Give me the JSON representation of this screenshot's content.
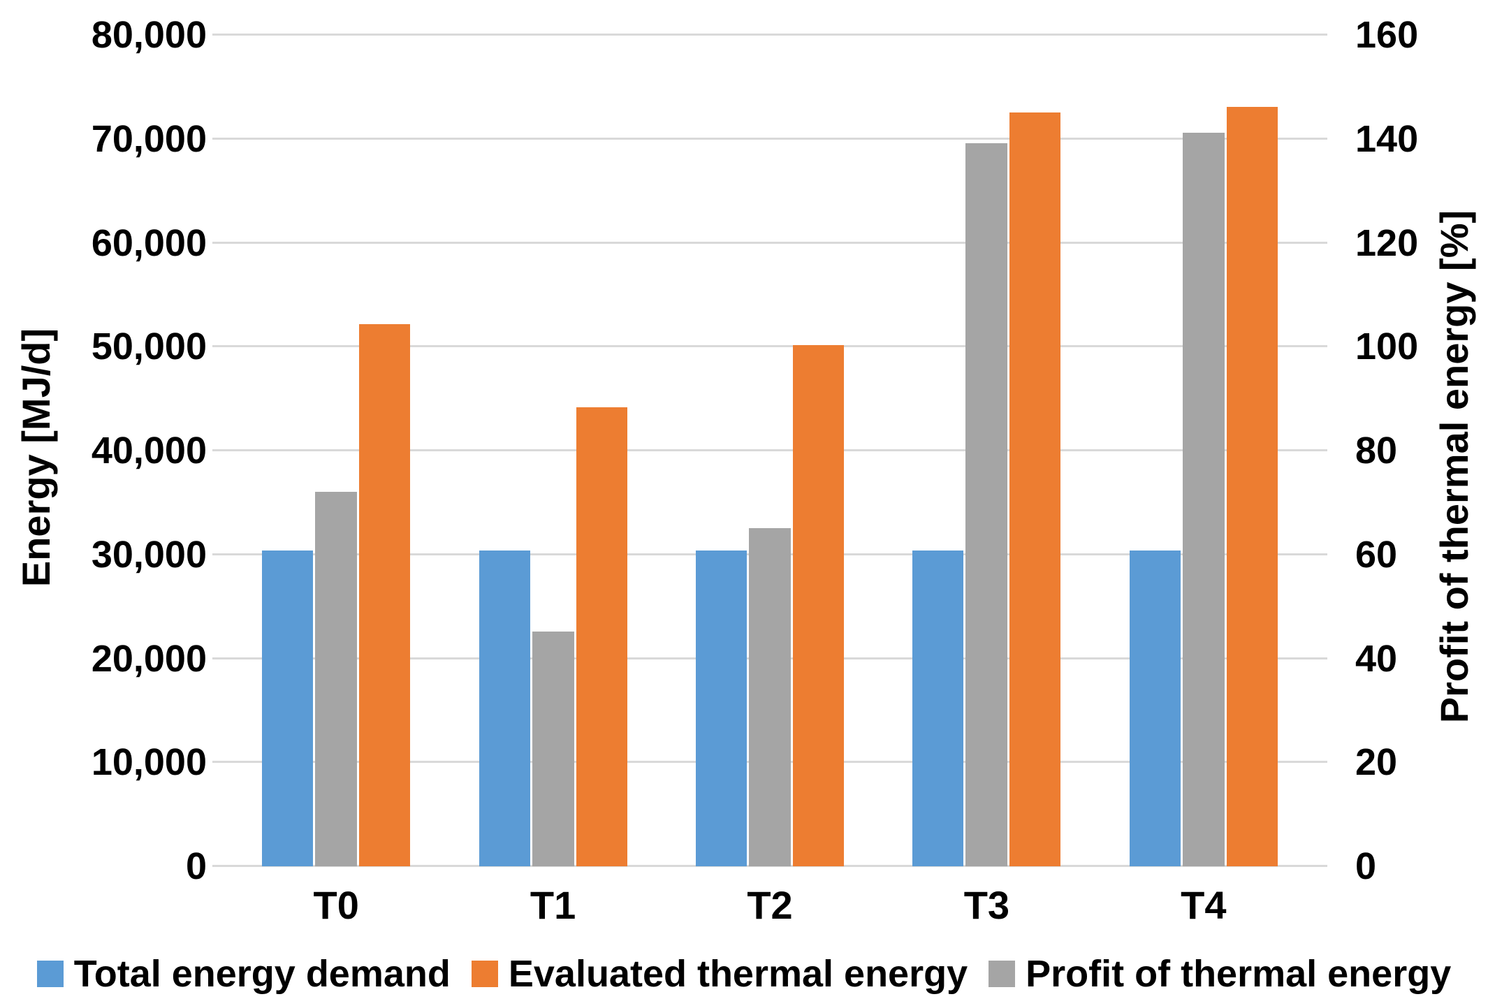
{
  "chart_data": {
    "type": "bar",
    "title": "",
    "categories": [
      "T0",
      "T1",
      "T2",
      "T3",
      "T4"
    ],
    "series": [
      {
        "name": "Total energy demand",
        "axis": "left",
        "color": "#5B9BD5",
        "values": [
          30300,
          30300,
          30300,
          30300,
          30300
        ]
      },
      {
        "name": "Evaluated thermal energy",
        "axis": "left",
        "color": "#ED7D31",
        "values": [
          52100,
          44100,
          50100,
          72500,
          73000
        ]
      },
      {
        "name": "Profit of thermal energy",
        "axis": "right",
        "color": "#A5A5A5",
        "values": [
          72,
          45,
          65,
          139,
          141
        ]
      }
    ],
    "left_axis": {
      "label": "Energy [MJ/d]",
      "min": 0,
      "max": 80000,
      "step": 10000,
      "tick_labels": [
        "0",
        "10,000",
        "20,000",
        "30,000",
        "40,000",
        "50,000",
        "60,000",
        "70,000",
        "80,000"
      ]
    },
    "right_axis": {
      "label": "Profit of thermal energy [%]",
      "min": 0,
      "max": 160,
      "step": 20,
      "tick_labels": [
        "0",
        "20",
        "40",
        "60",
        "80",
        "100",
        "120",
        "140",
        "160"
      ]
    },
    "legend": {
      "position": "bottom",
      "entries": [
        "Total energy demand",
        "Evaluated thermal energy",
        "Profit of thermal energy"
      ]
    },
    "grid": true,
    "gridline_color": "#D9D9D9",
    "background": "#FFFFFF",
    "text_color": "#000000"
  }
}
